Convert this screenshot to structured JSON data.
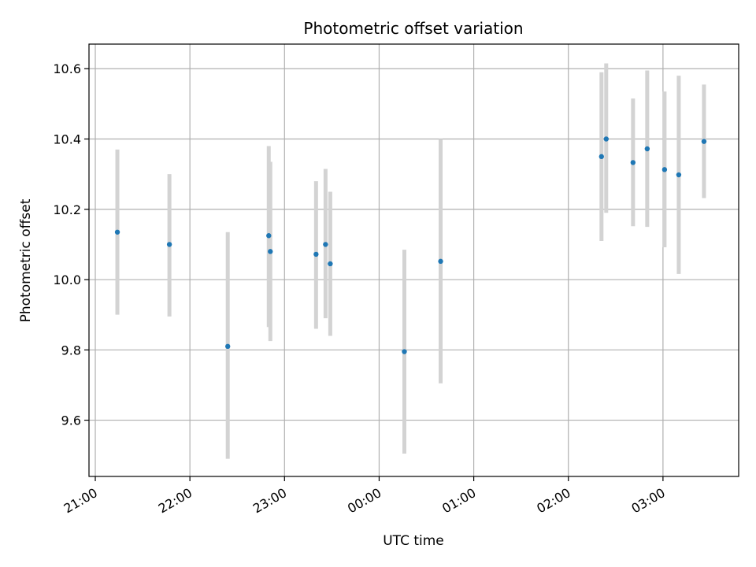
{
  "chart_data": {
    "type": "scatter",
    "title": "Photometric offset variation",
    "xlabel": "UTC time",
    "ylabel": "Photometric offset",
    "x_tick_labels": [
      "21:00",
      "22:00",
      "23:00",
      "00:00",
      "01:00",
      "02:00",
      "03:00"
    ],
    "y_tick_labels": [
      "9.6",
      "9.8",
      "10.0",
      "10.2",
      "10.4",
      "10.6"
    ],
    "y_ticks": [
      9.6,
      9.8,
      10.0,
      10.2,
      10.4,
      10.6
    ],
    "xlim": [
      "20:56",
      "03:48"
    ],
    "ylim": [
      9.44,
      10.67
    ],
    "grid": true,
    "colors": {
      "points": "#1f77b4",
      "errorbars": "#d3d3d3",
      "grid": "#b0b0b0"
    },
    "points": [
      {
        "time": "21:14",
        "y": 10.135,
        "ylow": 9.9,
        "yhigh": 10.37
      },
      {
        "time": "21:47",
        "y": 10.1,
        "ylow": 9.895,
        "yhigh": 10.3
      },
      {
        "time": "22:24",
        "y": 9.81,
        "ylow": 9.49,
        "yhigh": 10.135
      },
      {
        "time": "22:50",
        "y": 10.125,
        "ylow": 9.865,
        "yhigh": 10.38
      },
      {
        "time": "22:51",
        "y": 10.08,
        "ylow": 9.825,
        "yhigh": 10.335
      },
      {
        "time": "23:20",
        "y": 10.072,
        "ylow": 9.86,
        "yhigh": 10.28
      },
      {
        "time": "23:26",
        "y": 10.1,
        "ylow": 9.89,
        "yhigh": 10.315
      },
      {
        "time": "23:29",
        "y": 10.045,
        "ylow": 9.84,
        "yhigh": 10.25
      },
      {
        "time": "00:16",
        "y": 9.795,
        "ylow": 9.505,
        "yhigh": 10.085
      },
      {
        "time": "00:39",
        "y": 10.052,
        "ylow": 9.705,
        "yhigh": 10.4
      },
      {
        "time": "02:21",
        "y": 10.35,
        "ylow": 10.11,
        "yhigh": 10.59
      },
      {
        "time": "02:24",
        "y": 10.4,
        "ylow": 10.19,
        "yhigh": 10.615
      },
      {
        "time": "02:41",
        "y": 10.333,
        "ylow": 10.152,
        "yhigh": 10.515
      },
      {
        "time": "02:50",
        "y": 10.372,
        "ylow": 10.15,
        "yhigh": 10.595
      },
      {
        "time": "03:01",
        "y": 10.313,
        "ylow": 10.092,
        "yhigh": 10.535
      },
      {
        "time": "03:10",
        "y": 10.298,
        "ylow": 10.016,
        "yhigh": 10.58
      },
      {
        "time": "03:26",
        "y": 10.393,
        "ylow": 10.232,
        "yhigh": 10.555
      }
    ]
  }
}
